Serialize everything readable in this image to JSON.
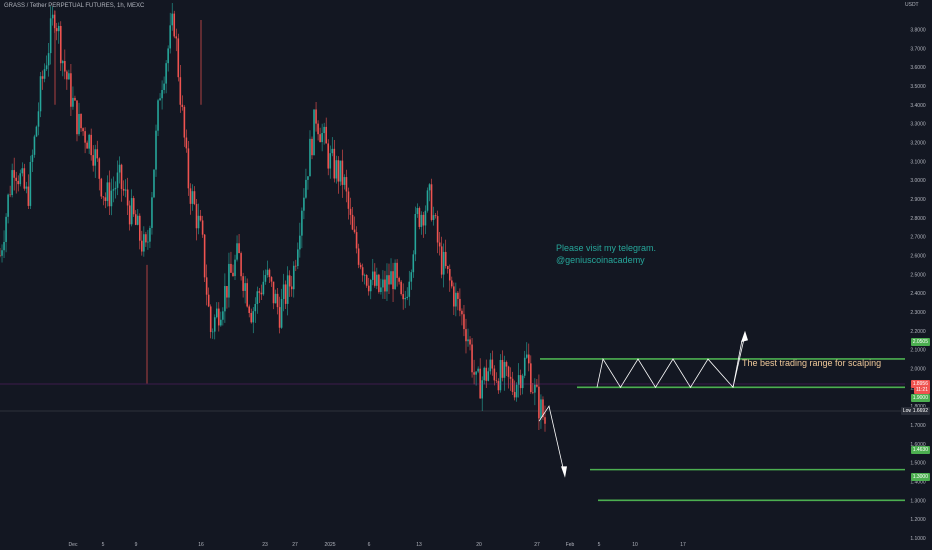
{
  "header": {
    "title": "GRASS / Tether PERPETUAL FUTURES, 1h, MEXC",
    "currency": "USDT"
  },
  "annotations": {
    "telegram_line1": "Please visit my telegram.",
    "telegram_line2": "@geniuscoinacademy",
    "range_note": "The best trading range for scalping"
  },
  "price_labels": {
    "resistance": "2.0505",
    "current": "1.8956",
    "current_sub": "11:21",
    "support": "1.9000",
    "low_label": "Low",
    "low_value": "1.6692",
    "target1": "1.4630",
    "target2": "1.3000"
  },
  "colors": {
    "background": "#131722",
    "up_candle": "#26a69a",
    "down_candle": "#ef5350",
    "level_line": "#4caf50",
    "path_line": "#ffffff",
    "grid": "#1e222d"
  },
  "chart_data": {
    "type": "candlestick",
    "title": "GRASS / Tether PERPETUAL FUTURES, 1h, MEXC",
    "y_range": [
      1.1,
      3.85
    ],
    "y_ticks": [
      "3.8000",
      "3.7000",
      "3.6000",
      "3.5000",
      "3.4000",
      "3.3000",
      "3.2000",
      "3.1000",
      "3.0000",
      "2.9000",
      "2.8000",
      "2.7000",
      "2.6000",
      "2.5000",
      "2.4000",
      "2.3000",
      "2.2000",
      "2.1000",
      "2.0000",
      "1.9000",
      "1.8000",
      "1.7000",
      "1.6000",
      "1.5000",
      "1.4000",
      "1.3000",
      "1.2000",
      "1.1000"
    ],
    "x_ticks": [
      "Dec",
      "5",
      "9",
      "16",
      "23",
      "27",
      "2025",
      "6",
      "13",
      "20",
      "27",
      "Feb",
      "5",
      "10",
      "17"
    ],
    "price_path": [
      [
        0,
        2.6
      ],
      [
        1.5,
        3.1
      ],
      [
        3,
        2.9
      ],
      [
        4.5,
        3.5
      ],
      [
        6,
        3.9
      ],
      [
        7,
        3.6
      ],
      [
        8.5,
        3.3
      ],
      [
        10,
        3.2
      ],
      [
        11.5,
        2.9
      ],
      [
        13,
        3.0
      ],
      [
        14.5,
        2.8
      ],
      [
        16,
        2.6
      ],
      [
        17.5,
        3.5
      ],
      [
        19,
        3.85
      ],
      [
        20.5,
        3.0
      ],
      [
        22,
        2.7
      ],
      [
        23,
        2.2
      ],
      [
        24.5,
        2.4
      ],
      [
        26,
        2.6
      ],
      [
        27.5,
        2.3
      ],
      [
        29,
        2.5
      ],
      [
        30.5,
        2.3
      ],
      [
        32,
        2.5
      ],
      [
        33,
        2.9
      ],
      [
        34.5,
        3.35
      ],
      [
        36,
        3.1
      ],
      [
        37.5,
        3.0
      ],
      [
        38.5,
        2.7
      ],
      [
        40,
        2.5
      ],
      [
        41.5,
        2.4
      ],
      [
        43,
        2.5
      ],
      [
        44,
        2.3
      ],
      [
        45.5,
        2.8
      ],
      [
        47,
        2.9
      ],
      [
        48,
        2.6
      ],
      [
        49.5,
        2.4
      ],
      [
        51,
        2.2
      ],
      [
        52,
        1.9
      ],
      [
        53.5,
        2.0
      ],
      [
        55,
        1.95
      ],
      [
        56,
        1.9
      ],
      [
        57.5,
        2.05
      ],
      [
        58.5,
        1.85
      ],
      [
        59.5,
        1.72
      ]
    ],
    "levels": [
      {
        "name": "resistance",
        "value": 2.0505
      },
      {
        "name": "support",
        "value": 1.9
      },
      {
        "name": "target1",
        "value": 1.463
      },
      {
        "name": "target2",
        "value": 1.3
      }
    ],
    "current_price": 1.8956,
    "low": 1.6692,
    "projection": {
      "range_bounce": [
        [
          0,
          1.9
        ],
        [
          1,
          2.05
        ],
        [
          2,
          1.9
        ],
        [
          3,
          2.05
        ],
        [
          4,
          1.9
        ],
        [
          5,
          2.05
        ],
        [
          6,
          1.9
        ],
        [
          7,
          2.05
        ],
        [
          8,
          1.9
        ],
        [
          9,
          2.15
        ]
      ],
      "drop": [
        [
          0,
          1.72
        ],
        [
          1,
          1.8
        ],
        [
          2,
          1.45
        ]
      ]
    },
    "grid": false
  }
}
